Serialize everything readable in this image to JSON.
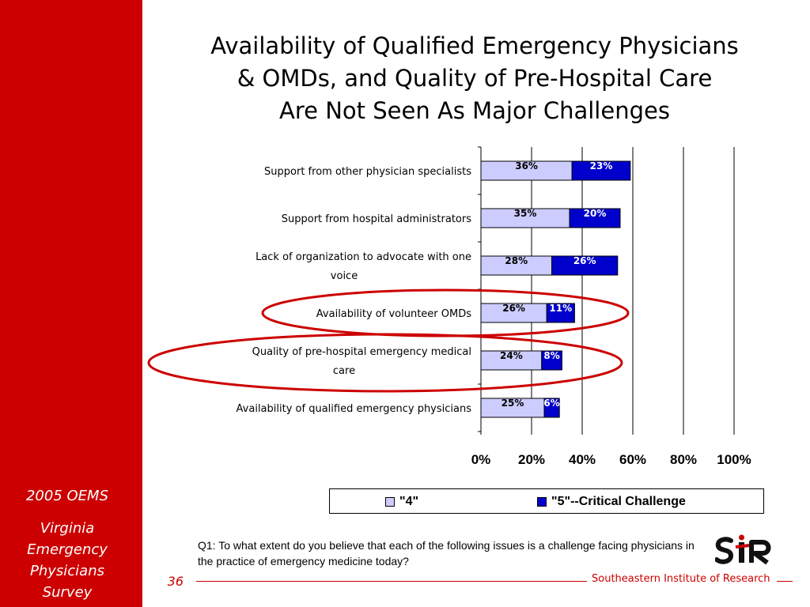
{
  "sidebar": {
    "year": "2005 OEMS",
    "survey_lines": [
      "Virginia",
      "Emergency",
      "Physicians",
      "Survey"
    ]
  },
  "page_number": "36",
  "title_lines": [
    "Availability of Qualified Emergency Physicians",
    "& OMDs, and Quality of Pre-Hospital Care",
    "Are Not Seen As Major Challenges"
  ],
  "question": {
    "prefix": "Q1:",
    "text": " To what extent do you believe that each of the following issues is a challenge facing physicians in the practice of emergency medicine today?"
  },
  "footer": {
    "org_name": "Southeastern Institute of Research",
    "logo_text": "SIR"
  },
  "colors": {
    "sidebar_red": "#cc0000",
    "series_4": "#ccccff",
    "series_5": "#0000cc",
    "highlight_circle": "#cc0000"
  },
  "chart_data": {
    "type": "bar",
    "orientation": "horizontal",
    "stacked": true,
    "categories": [
      [
        "Support from other physician specialists"
      ],
      [
        "Support from hospital administrators"
      ],
      [
        "Lack of organization to advocate with one",
        "voice"
      ],
      [
        "Availability of volunteer OMDs"
      ],
      [
        "Quality of pre-hospital emergency medical",
        "care"
      ],
      [
        "Availability of qualified emergency physicians"
      ]
    ],
    "series": [
      {
        "name": "\"4\"",
        "values": [
          36,
          35,
          28,
          26,
          24,
          25
        ],
        "labels": [
          "36%",
          "35%",
          "28%",
          "26%",
          "24%",
          "25%"
        ]
      },
      {
        "name": "\"5\"--Critical Challenge",
        "values": [
          23,
          20,
          26,
          11,
          8,
          6
        ],
        "labels": [
          "23%",
          "20%",
          "26%",
          "11%",
          "8%",
          "6%"
        ]
      }
    ],
    "xlim": [
      0,
      100
    ],
    "xticks": [
      0,
      20,
      40,
      60,
      80,
      100
    ],
    "xtick_labels": [
      "0%",
      "20%",
      "40%",
      "60%",
      "80%",
      "100%"
    ],
    "grid": "vertical",
    "legend_position": "bottom",
    "highlighted_categories": [
      3,
      4
    ]
  }
}
